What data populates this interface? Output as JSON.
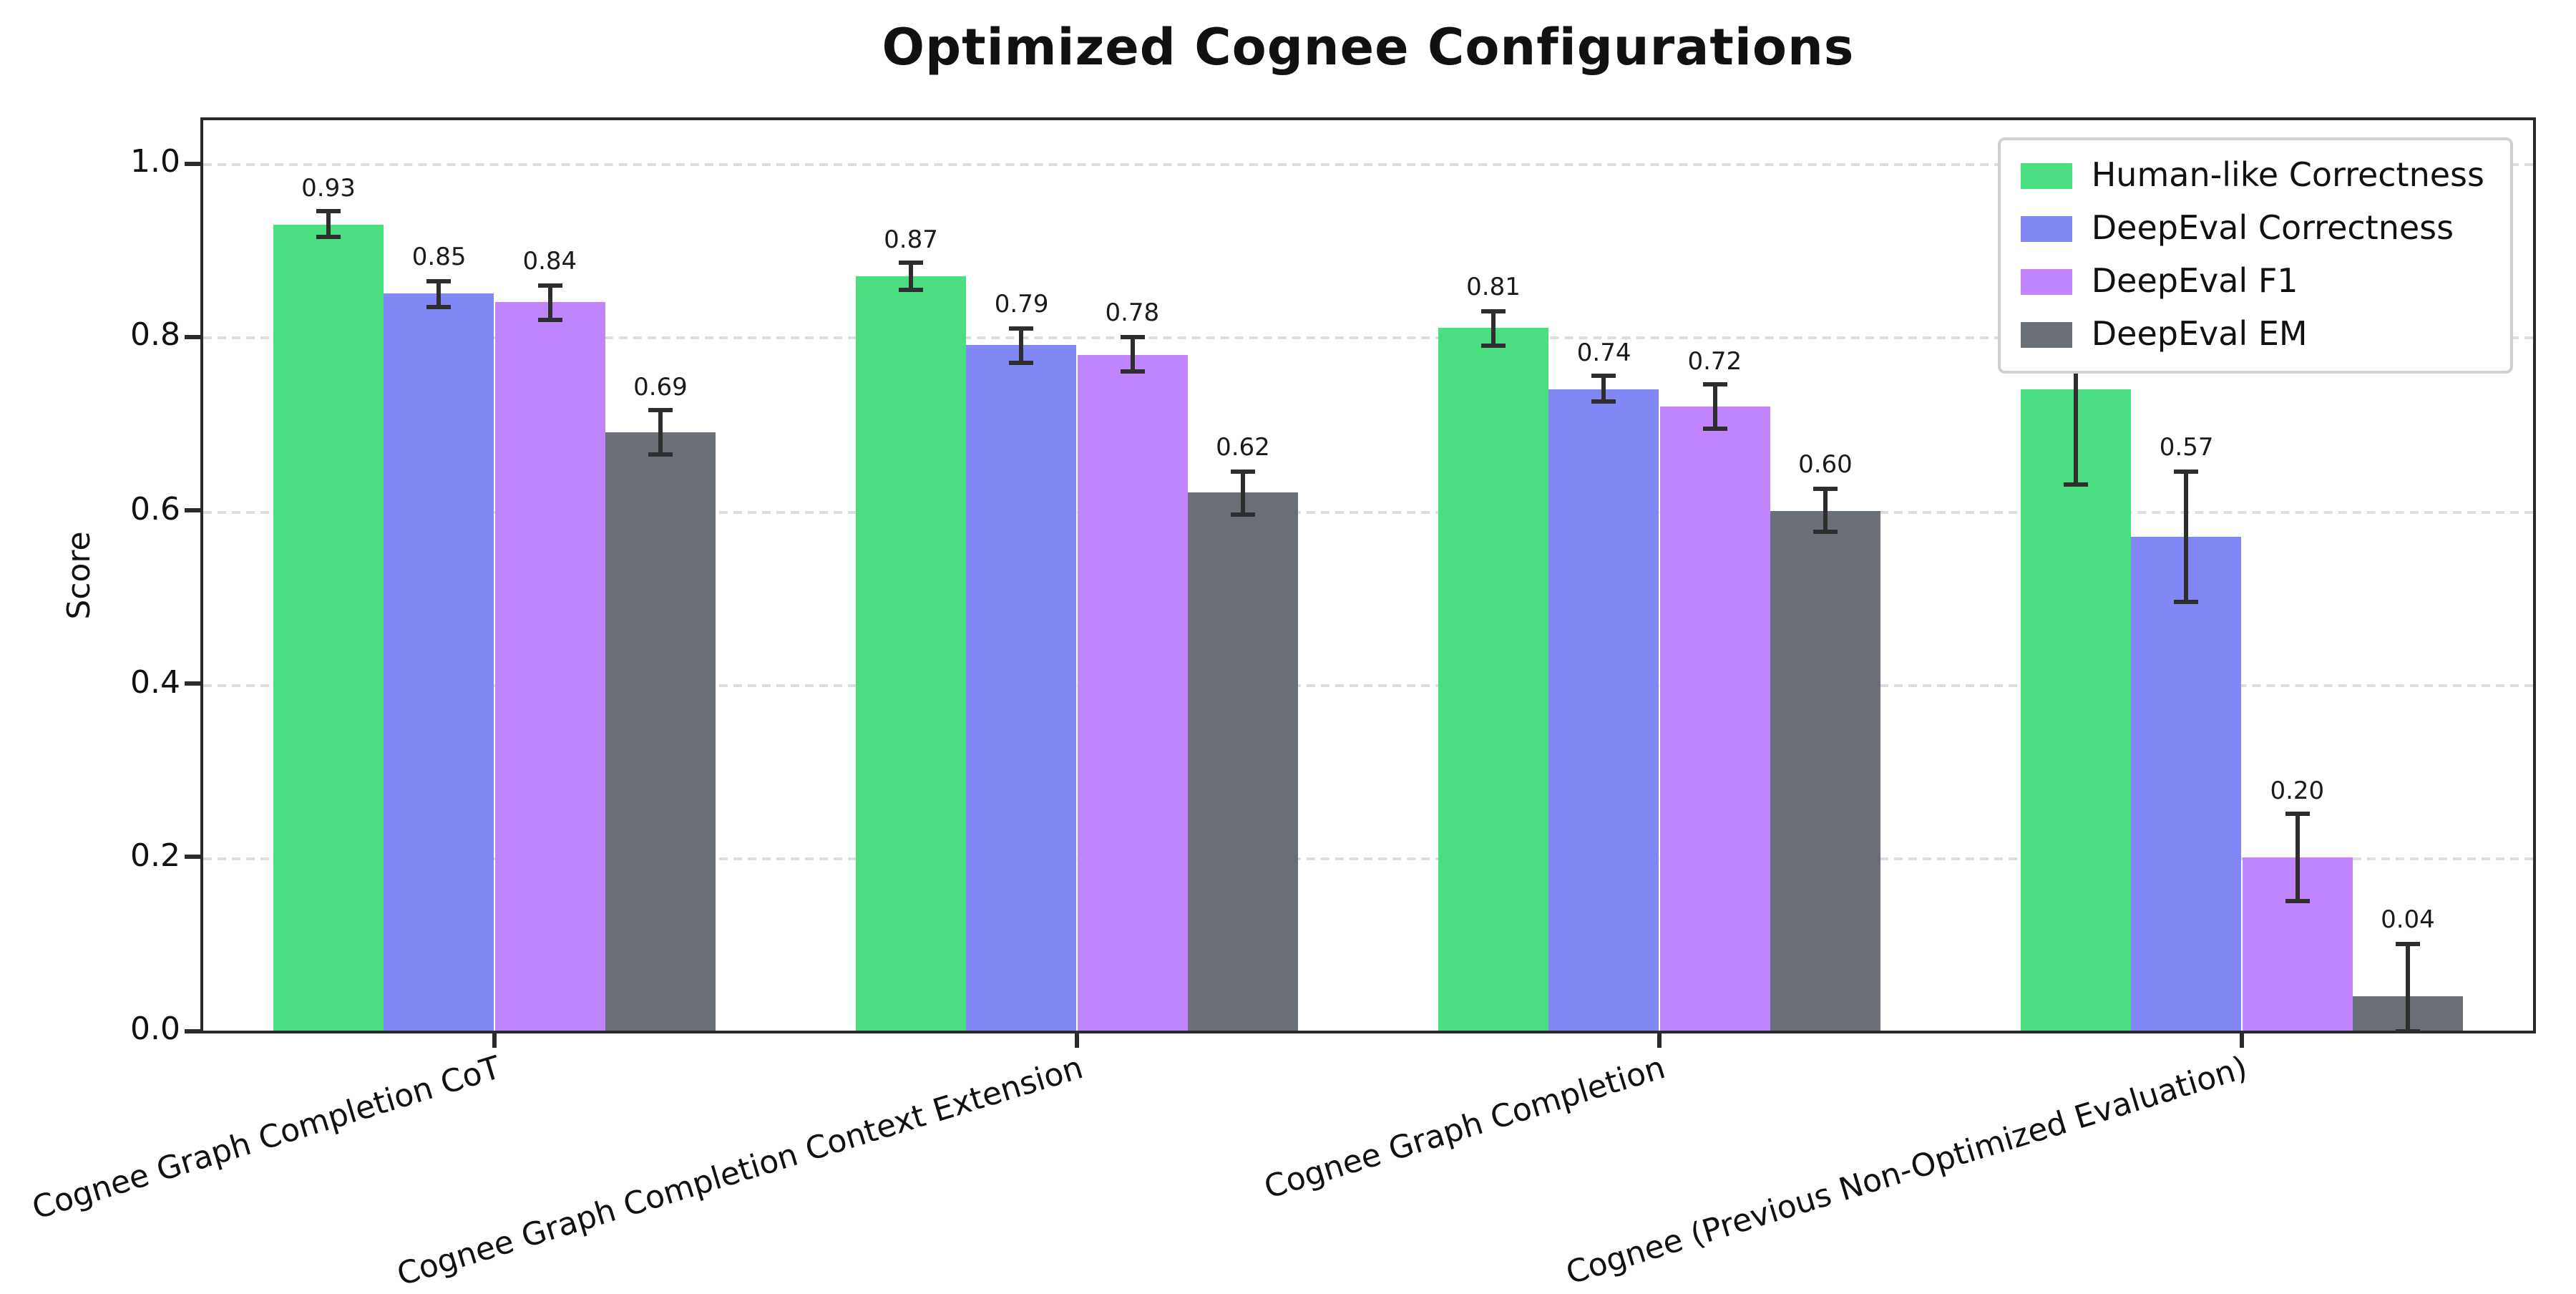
{
  "chart_data": {
    "type": "bar",
    "title": "Optimized Cognee Configurations",
    "ylabel": "Score",
    "categories": [
      "Cognee Graph Completion CoT",
      "Cognee Graph Completion Context Extension",
      "Cognee Graph Completion",
      "Cognee (Previous Non-Optimized Evaluation)"
    ],
    "series": [
      {
        "name": "Human-like Correctness",
        "color": "#4ade80",
        "values": [
          0.93,
          0.87,
          0.81,
          0.74
        ],
        "errors": [
          0.015,
          0.015,
          0.02,
          0.11
        ]
      },
      {
        "name": "DeepEval Correctness",
        "color": "#8187f4",
        "values": [
          0.85,
          0.79,
          0.74,
          0.57
        ],
        "errors": [
          0.015,
          0.02,
          0.015,
          0.075
        ]
      },
      {
        "name": "DeepEval F1",
        "color": "#c084fc",
        "values": [
          0.84,
          0.78,
          0.72,
          0.2
        ],
        "errors": [
          0.02,
          0.02,
          0.025,
          0.05
        ]
      },
      {
        "name": "DeepEval EM",
        "color": "#6a6f78",
        "values": [
          0.69,
          0.62,
          0.6,
          0.04
        ],
        "errors": [
          0.025,
          0.025,
          0.025,
          0.06
        ]
      }
    ],
    "yticks": [
      0.0,
      0.2,
      0.4,
      0.6,
      0.8,
      1.0
    ],
    "ylim": [
      0,
      1.05
    ],
    "grid": "dashed horizontal gridlines",
    "legend_position": "upper right",
    "bar_value_labels_shown": true,
    "error_bars_shown": true
  }
}
